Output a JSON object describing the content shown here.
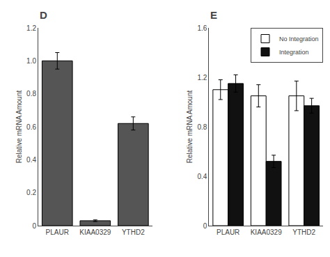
{
  "chart_data": [
    {
      "type": "bar",
      "title": "D",
      "categories": [
        "PLAUR",
        "KIAA0329",
        "YTHD2"
      ],
      "values": [
        1.0,
        0.03,
        0.62
      ],
      "errors": [
        0.05,
        0.005,
        0.04
      ],
      "color": "#555555",
      "ylabel": "Relative mRNA Amount",
      "ylim": [
        0,
        1.2
      ],
      "yticks": [
        0,
        0.2,
        0.4,
        0.6,
        0.8,
        {
          "value": 1.0,
          "label": "1.0"
        },
        1.2
      ],
      "grid": false
    },
    {
      "type": "bar",
      "title": "E",
      "categories": [
        "PLAUR",
        "KIAA0329",
        "YTHD2"
      ],
      "series": [
        {
          "name": "No Integration",
          "color": "#ffffff",
          "values": [
            1.1,
            1.05,
            1.05
          ],
          "errors": [
            0.08,
            0.09,
            0.12
          ]
        },
        {
          "name": "Integration",
          "color": "#111111",
          "values": [
            1.15,
            0.52,
            0.97
          ],
          "errors": [
            0.07,
            0.05,
            0.06
          ]
        }
      ],
      "ylabel": "Relative mRNA Amount",
      "ylim": [
        0,
        1.6
      ],
      "yticks": [
        0,
        0.4,
        0.8,
        1.2,
        1.6
      ],
      "legend": "upper right",
      "grid": false
    }
  ]
}
